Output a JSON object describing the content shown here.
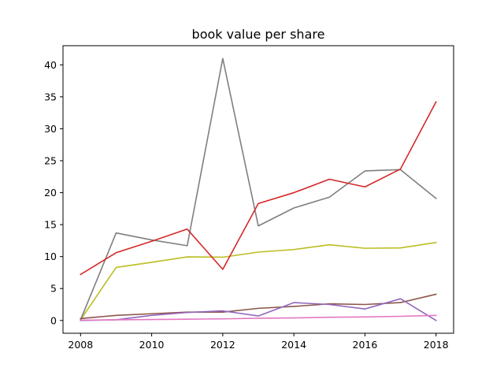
{
  "chart_data": {
    "type": "line",
    "title": "book value per share",
    "xlabel": "",
    "ylabel": "",
    "xlim": [
      2008,
      2018
    ],
    "ylim": [
      -2,
      43
    ],
    "x": [
      2008,
      2009,
      2010,
      2011,
      2012,
      2013,
      2014,
      2015,
      2016,
      2017,
      2018
    ],
    "xticks": [
      2008,
      2010,
      2012,
      2014,
      2016,
      2018
    ],
    "yticks": [
      0,
      5,
      10,
      15,
      20,
      25,
      30,
      35,
      40
    ],
    "grid": false,
    "legend": "none",
    "series": [
      {
        "color": "#bcbd22",
        "values": [
          0.1,
          8.3,
          9.1,
          9.95,
          9.9,
          10.7,
          11.1,
          11.85,
          11.3,
          11.35,
          12.2
        ]
      },
      {
        "color": "#7f7f7f",
        "values": [
          0.1,
          13.7,
          12.6,
          11.7,
          41.0,
          14.8,
          17.6,
          19.3,
          23.4,
          23.6,
          19.1
        ]
      },
      {
        "color": "#d62728",
        "values": [
          7.2,
          10.6,
          12.4,
          14.3,
          8.0,
          18.3,
          20.0,
          22.1,
          20.9,
          23.7,
          34.2
        ]
      },
      {
        "color": "#8c564b",
        "values": [
          0.3,
          0.8,
          1.05,
          1.3,
          1.3,
          1.9,
          2.2,
          2.6,
          2.5,
          2.8,
          4.1
        ]
      },
      {
        "color": "#9467bd",
        "values": [
          0.0,
          0.1,
          0.8,
          1.25,
          1.5,
          0.7,
          2.8,
          2.5,
          1.8,
          3.4,
          0.0
        ]
      },
      {
        "color": "#e377c2",
        "values": [
          0.05,
          0.1,
          0.15,
          0.2,
          0.25,
          0.35,
          0.4,
          0.5,
          0.55,
          0.65,
          0.8
        ]
      }
    ]
  }
}
